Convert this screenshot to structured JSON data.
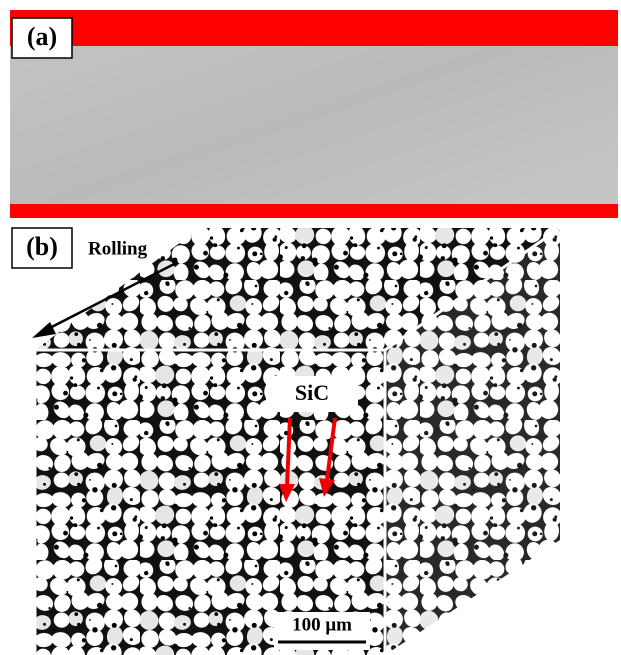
{
  "panel_a": {
    "label": "(a)"
  },
  "panel_b": {
    "label": "(b)",
    "direction": "Rolling",
    "phase": "SiC",
    "scale_bar": "100 μm"
  }
}
